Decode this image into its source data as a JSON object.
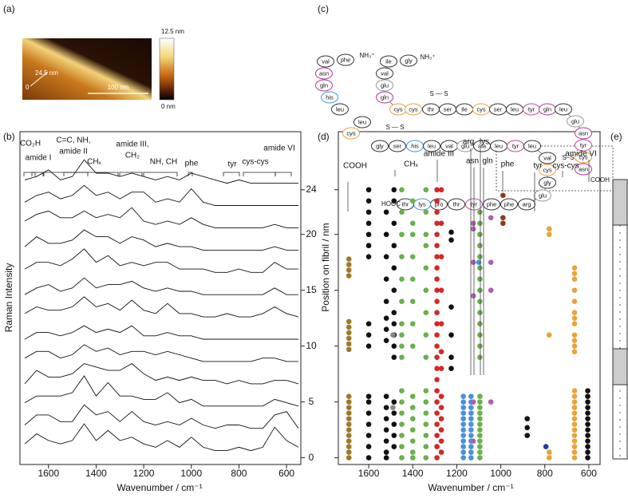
{
  "panel_labels": [
    "(a)",
    "(b)",
    "(c)",
    "(d)",
    "(e)"
  ],
  "afm": {
    "colorbar_max": "12.5 nm",
    "colorbar_min": "0 nm",
    "scale_bar": "100 nm",
    "height_label": "24.5 nm",
    "origin_label": "0"
  },
  "peptide": {
    "residues": [
      "val",
      "phe",
      "ile",
      "gly",
      "val",
      "asn",
      "gln",
      "his",
      "leu",
      "leu",
      "cys",
      "glu",
      "gln",
      "cys",
      "cys",
      "thr",
      "ser",
      "ile",
      "cys",
      "ser",
      "leu",
      "tyr",
      "gln",
      "leu",
      "glu",
      "asn",
      "tyr",
      "cys",
      "asn",
      "gly",
      "ser",
      "his",
      "leu",
      "val",
      "glu",
      "ala",
      "leu",
      "tyr",
      "leu",
      "val",
      "cys",
      "gly",
      "glu",
      "arg",
      "phe",
      "phe",
      "tyr",
      "thr",
      "pro",
      "lys",
      "thr"
    ],
    "annotations": [
      "NH₃⁺",
      "NH₃⁺",
      "S — S",
      "S — S",
      "S–S",
      "HOOC",
      "COOH"
    ]
  },
  "chart_data": [
    {
      "type": "spectra",
      "x_label": "Wavenumber / cm⁻¹",
      "y_label": "Raman Intensity",
      "xlim": [
        1720,
        540
      ],
      "xticks": [
        1600,
        1400,
        1200,
        1000,
        800,
        600
      ],
      "annotations": [
        [
          "CO₂H"
        ],
        [
          "amide I"
        ],
        [
          "C=C, NH,",
          "amide II"
        ],
        [
          "CHₓ"
        ],
        [
          "amide III,",
          "CH₂"
        ],
        [
          "NH, CH"
        ],
        [
          "phe"
        ],
        [
          "tyr"
        ],
        [
          "cys-cys"
        ],
        [
          "amide VI"
        ]
      ],
      "x": [
        1700,
        1650,
        1600,
        1550,
        1500,
        1450,
        1400,
        1350,
        1300,
        1250,
        1200,
        1150,
        1100,
        1050,
        1000,
        950,
        900,
        850,
        800,
        750,
        700,
        650,
        600,
        550
      ],
      "series": [
        {
          "values": [
            0.4,
            0.7,
            0.5,
            0.4,
            0.5,
            1.0,
            0.5,
            0.8,
            0.5,
            0.6,
            0.4,
            0.3,
            0.5,
            0.3,
            0.6,
            0.3,
            0.2,
            0.2,
            0.3,
            0.2,
            0.3,
            0.9,
            0.5,
            0.3
          ]
        },
        {
          "values": [
            0.3,
            0.6,
            0.6,
            0.4,
            0.4,
            0.9,
            0.6,
            0.7,
            0.4,
            0.7,
            0.4,
            0.3,
            0.4,
            0.3,
            0.5,
            0.3,
            0.2,
            0.3,
            0.3,
            0.2,
            0.2,
            0.6,
            0.7,
            0.2
          ]
        },
        {
          "values": [
            0.3,
            0.5,
            0.5,
            0.5,
            0.6,
            1.1,
            0.5,
            0.9,
            0.5,
            0.5,
            0.4,
            0.4,
            0.6,
            0.3,
            0.4,
            0.2,
            0.2,
            0.2,
            0.2,
            0.2,
            0.2,
            0.4,
            0.3,
            0.2
          ]
        },
        {
          "values": [
            0.2,
            0.6,
            0.4,
            0.4,
            0.5,
            0.8,
            0.7,
            0.6,
            0.6,
            0.8,
            0.5,
            0.3,
            0.4,
            0.3,
            0.4,
            0.3,
            0.3,
            0.2,
            0.3,
            0.2,
            0.2,
            0.3,
            0.3,
            0.2
          ]
        },
        {
          "values": [
            0.3,
            0.5,
            0.5,
            0.3,
            0.4,
            0.7,
            0.5,
            0.6,
            0.4,
            0.5,
            0.5,
            0.4,
            0.5,
            0.4,
            0.3,
            0.2,
            0.2,
            0.2,
            0.2,
            0.2,
            0.3,
            0.3,
            0.2,
            0.2
          ]
        },
        {
          "values": [
            0.2,
            0.4,
            0.4,
            0.3,
            0.4,
            0.6,
            0.4,
            0.5,
            0.4,
            0.6,
            0.3,
            0.3,
            0.4,
            0.3,
            0.3,
            0.2,
            0.2,
            0.2,
            0.2,
            0.2,
            0.2,
            0.2,
            0.2,
            0.2
          ]
        },
        {
          "values": [
            0.3,
            0.5,
            0.4,
            0.4,
            0.5,
            0.8,
            0.5,
            0.6,
            0.4,
            0.7,
            0.4,
            0.3,
            0.6,
            0.3,
            0.3,
            0.2,
            0.2,
            0.3,
            0.2,
            0.2,
            0.3,
            0.5,
            0.3,
            0.2
          ]
        },
        {
          "values": [
            0.2,
            0.4,
            0.5,
            0.3,
            0.4,
            0.7,
            0.4,
            0.5,
            0.5,
            0.6,
            0.4,
            0.3,
            0.4,
            0.3,
            0.3,
            0.2,
            0.2,
            0.2,
            0.2,
            0.2,
            0.2,
            0.4,
            0.2,
            0.2
          ]
        },
        {
          "values": [
            0.3,
            0.5,
            0.5,
            0.4,
            0.6,
            0.9,
            0.5,
            0.7,
            0.4,
            0.5,
            0.4,
            0.5,
            0.5,
            0.3,
            0.3,
            0.3,
            0.2,
            0.2,
            0.3,
            0.2,
            0.2,
            0.5,
            0.3,
            0.3
          ]
        },
        {
          "values": [
            0.3,
            0.6,
            0.4,
            0.4,
            0.5,
            0.8,
            0.6,
            0.6,
            0.4,
            0.6,
            0.5,
            0.3,
            0.4,
            0.3,
            0.3,
            0.2,
            0.2,
            0.2,
            0.2,
            0.2,
            0.2,
            0.3,
            0.2,
            0.2
          ]
        },
        {
          "values": [
            0.4,
            0.6,
            0.7,
            0.5,
            0.5,
            0.7,
            0.5,
            0.6,
            0.5,
            0.8,
            0.4,
            0.3,
            0.4,
            0.3,
            0.5,
            0.3,
            0.2,
            0.2,
            0.2,
            0.2,
            0.2,
            0.3,
            0.2,
            0.2
          ]
        },
        {
          "values": [
            0.3,
            0.5,
            0.6,
            0.4,
            0.5,
            0.8,
            0.5,
            0.6,
            0.4,
            0.6,
            0.6,
            0.3,
            0.4,
            0.3,
            0.7,
            0.3,
            0.2,
            0.2,
            0.2,
            0.2,
            0.2,
            0.2,
            0.2,
            0.2
          ]
        },
        {
          "values": [
            0.3,
            0.4,
            0.6,
            0.3,
            0.4,
            0.9,
            0.5,
            0.5,
            0.4,
            0.5,
            0.4,
            0.3,
            0.4,
            0.3,
            0.5,
            0.4,
            0.3,
            0.2,
            0.3,
            0.2,
            0.2,
            0.2,
            0.2,
            0.2
          ]
        }
      ]
    },
    {
      "type": "scatter",
      "x_label": "Wavenumber / cm⁻¹",
      "y_label": "Position on fibril / nm",
      "xlim": [
        1738,
        549
      ],
      "xticks": [
        1600,
        1400,
        1200,
        1000,
        800,
        600
      ],
      "ylim": [
        -0.6,
        29.2
      ],
      "yticks": [
        0,
        5,
        10,
        15,
        20,
        24
      ],
      "annotations": [
        "COOH",
        "CHₓ",
        "amide III",
        "arg",
        "lys",
        "asn",
        "gln",
        "phe",
        "tyr",
        "cys-cys",
        "amide VI"
      ],
      "series": [
        {
          "color": "#a0782a",
          "x": 1690,
          "y": [
            0,
            0.5,
            1,
            1.5,
            2,
            2.5,
            3,
            3.5,
            4,
            4.5,
            5,
            5.5,
            9.7,
            10.2,
            10.7,
            11.2,
            11.7,
            12.2,
            16.3,
            16.8,
            17.3,
            17.8
          ]
        },
        {
          "color": "#111111",
          "x": 1600,
          "y": [
            0,
            1,
            2,
            3,
            4,
            5,
            5.5,
            10,
            11,
            12,
            18,
            19,
            20,
            21,
            22,
            23,
            24
          ]
        },
        {
          "color": "#111111",
          "x": 1520,
          "y": [
            0,
            0.5,
            1.5,
            2.5,
            3.5,
            4.5,
            5.5,
            10.5,
            11.5,
            12.5,
            14,
            16,
            18,
            20,
            22
          ]
        },
        {
          "color": "#111111",
          "x": 1485,
          "y": [
            1,
            2,
            3,
            4,
            5,
            9,
            10,
            11,
            12,
            13,
            15,
            17,
            19,
            21,
            23,
            24
          ]
        },
        {
          "color": "#6ab04c",
          "x": 1450,
          "y": [
            0,
            1,
            2,
            3,
            4,
            5,
            6,
            9,
            10,
            11,
            12,
            14,
            16,
            18,
            20,
            22,
            24
          ]
        },
        {
          "color": "#6ab04c",
          "x": 1400,
          "y": [
            0,
            0.5,
            1.5,
            2.5,
            3.5,
            4.5,
            5.5,
            10,
            12,
            14,
            16,
            18,
            20,
            21,
            23
          ]
        },
        {
          "color": "#6ab04c",
          "x": 1340,
          "y": [
            0,
            1,
            2,
            3,
            4,
            5,
            6,
            9,
            11,
            13,
            15,
            17,
            19,
            20,
            22,
            24
          ]
        },
        {
          "color": "#d62728",
          "x": 1290,
          "y": [
            0,
            1,
            2,
            3,
            4,
            5,
            6,
            7,
            8,
            9,
            10,
            11,
            12,
            13,
            14,
            15,
            16,
            17,
            18,
            19,
            20,
            21,
            22,
            23,
            24
          ]
        },
        {
          "color": "#d62728",
          "x": 1270,
          "y": [
            0.5,
            1.5,
            2.5,
            3.5,
            4.5,
            5.5,
            8,
            9.5,
            12,
            15,
            18,
            21,
            24
          ]
        },
        {
          "color": "#111111",
          "x": 1225,
          "y": [
            8,
            9,
            11,
            13.5,
            19.5,
            20.2
          ]
        },
        {
          "color": "#4a90d9",
          "x": 1170,
          "y": [
            0,
            0.5,
            1,
            1.5,
            2,
            2.5,
            3,
            3.5,
            4,
            4.5,
            5,
            5.5
          ]
        },
        {
          "color": "#4a90d9",
          "x": 1135,
          "y": [
            0,
            0.5,
            1,
            1.5,
            2,
            2.5,
            3,
            3.5,
            4,
            4.5,
            5,
            5.5
          ]
        },
        {
          "color": "#6ab04c",
          "x": 1095,
          "y": [
            0,
            0.5,
            1,
            1.5,
            2,
            2.5,
            3,
            3.5,
            4,
            4.5,
            5,
            5.5,
            9,
            10,
            11,
            12,
            13,
            14,
            15,
            16,
            17,
            18,
            19,
            20,
            21,
            22
          ]
        },
        {
          "color": "#b05fb0",
          "x": 1125,
          "y": [
            1.5,
            5,
            14.5,
            17.5,
            20.5,
            21
          ]
        },
        {
          "color": "#b05fb0",
          "x": 1045,
          "y": [
            5,
            15,
            17.5,
            21.5
          ]
        },
        {
          "color": "#4a90d9",
          "x": 1100,
          "y": [
            17.5
          ]
        },
        {
          "color": "#8b3a1a",
          "x": 990,
          "y": [
            21,
            21.5,
            23.5
          ]
        },
        {
          "color": "#111111",
          "x": 880,
          "y": [
            2,
            2.7,
            3.5
          ]
        },
        {
          "color": "#2b3a9a",
          "x": 795,
          "y": [
            1
          ]
        },
        {
          "color": "#e8a33d",
          "x": 780,
          "y": [
            0,
            0.5,
            11,
            20,
            20.5
          ]
        },
        {
          "color": "#e8a33d",
          "x": 665,
          "y": [
            0,
            0.5,
            1,
            1.5,
            2,
            2.5,
            3,
            3.5,
            4,
            4.5,
            5,
            5.5,
            6,
            9.5,
            10,
            10.5,
            11,
            12,
            12.5,
            13,
            14,
            15,
            16,
            16.5,
            17
          ]
        },
        {
          "color": "#111111",
          "x": 605,
          "y": [
            0,
            0.5,
            1,
            1.5,
            2,
            2.5,
            3,
            3.5,
            4,
            4.5,
            5,
            5.5,
            6
          ]
        },
        {
          "color": "#888888",
          "x": 1490,
          "y": [
            4.5,
            11
          ]
        }
      ]
    }
  ]
}
